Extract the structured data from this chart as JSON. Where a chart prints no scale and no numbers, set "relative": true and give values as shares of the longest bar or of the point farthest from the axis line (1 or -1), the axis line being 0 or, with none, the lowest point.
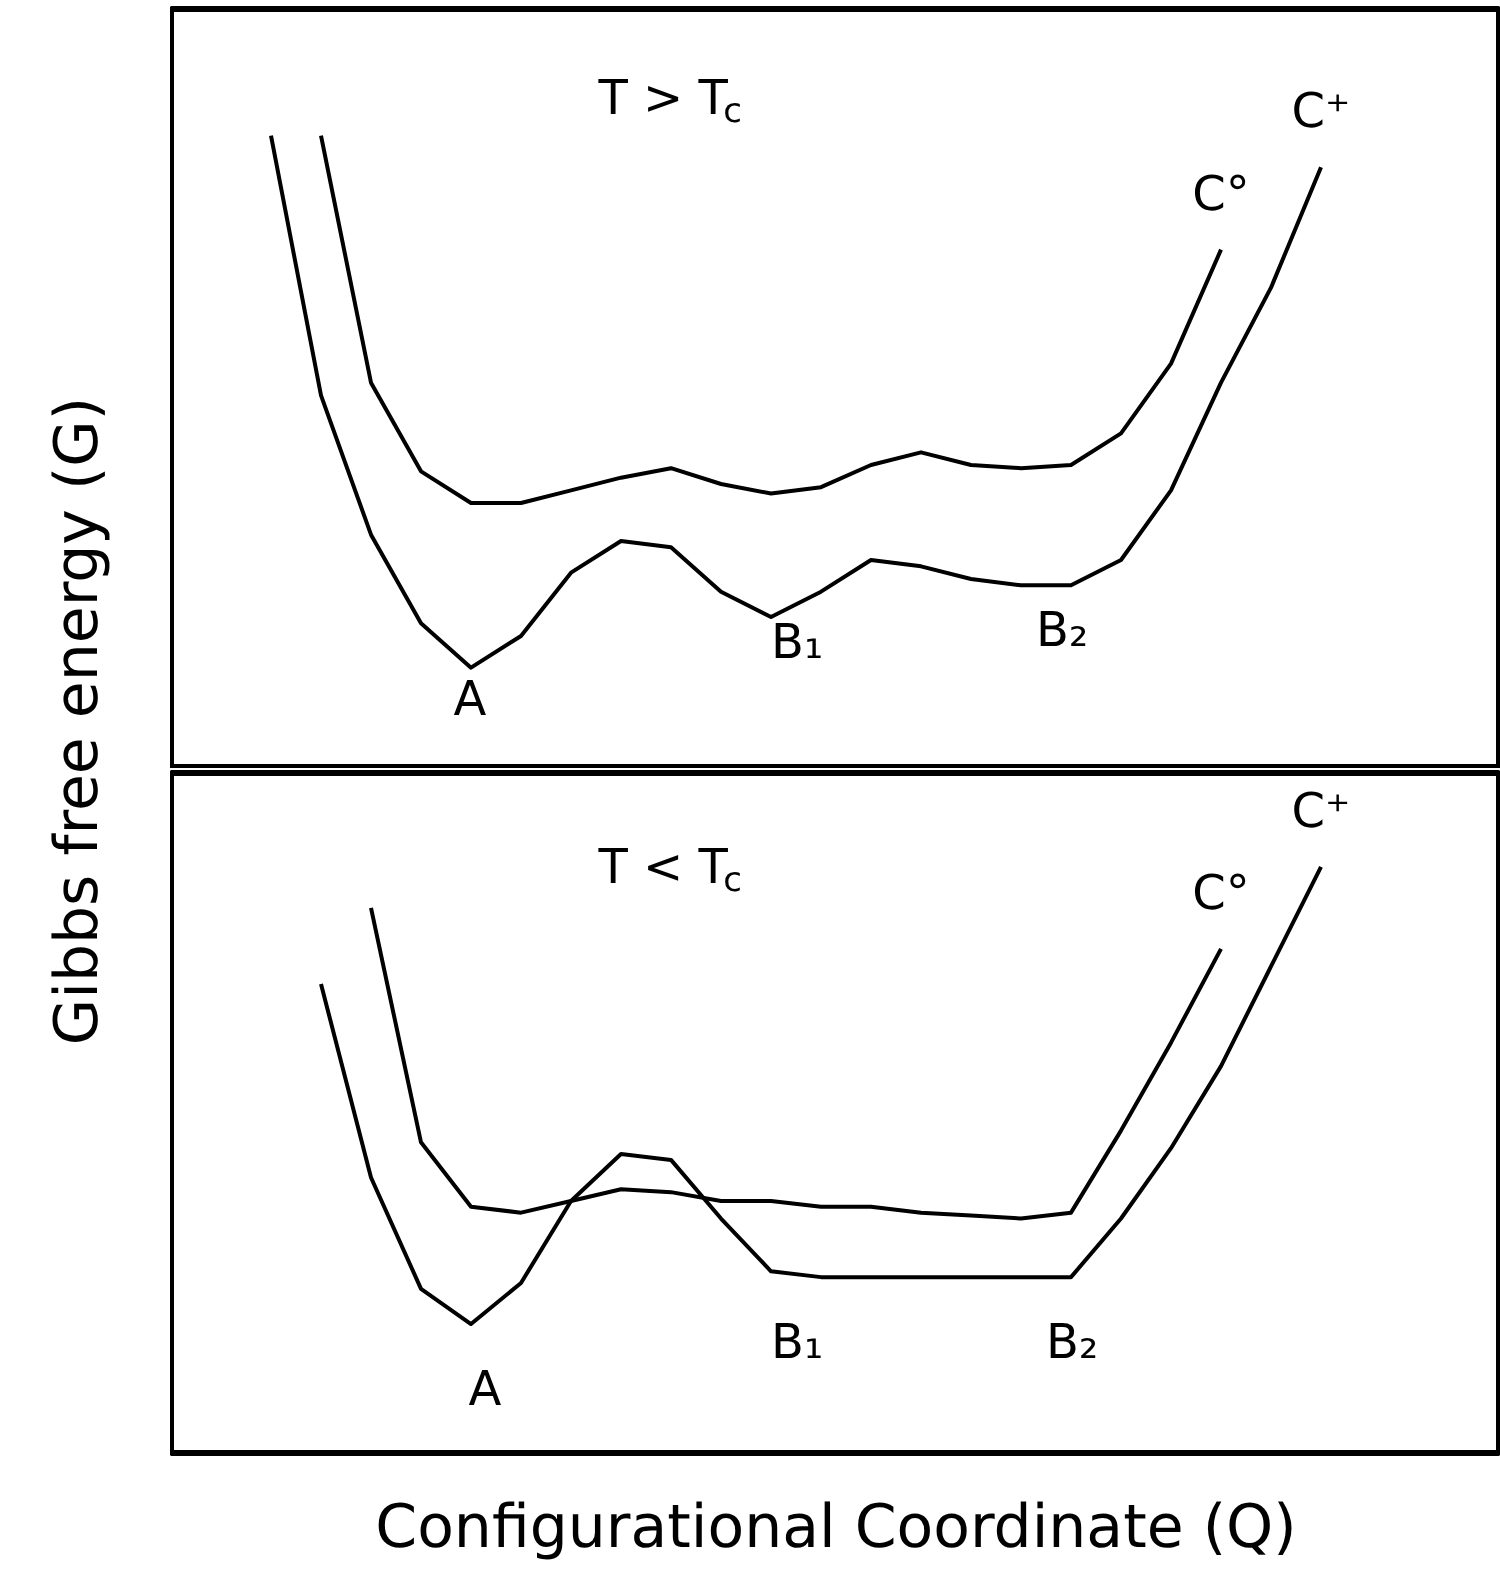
{
  "chart_data": [
    {
      "type": "line",
      "relative": true,
      "ylabel": "Gibbs free energy (G)",
      "annotations": [
        "T > T$_{c}$",
        "A",
        "B₁",
        "B₂"
      ],
      "categories": [
        null,
        null,
        null,
        null,
        null,
        null,
        null,
        null,
        null,
        null,
        null,
        null,
        null,
        null,
        null,
        null,
        null,
        null,
        null,
        null,
        null,
        null
      ],
      "series": [
        {
          "name": "C°",
          "color": "#000000",
          "values": [
            null,
            1.0,
            0.61,
            0.47,
            0.42,
            0.42,
            0.44,
            0.46,
            0.475,
            0.45,
            0.435,
            0.445,
            0.48,
            0.5,
            0.48,
            0.475,
            0.48,
            0.53,
            0.64,
            0.82,
            null,
            null
          ]
        },
        {
          "name": "C⁺",
          "color": "#000000",
          "values": [
            1.0,
            0.59,
            0.37,
            0.23,
            0.16,
            0.21,
            0.31,
            0.36,
            0.35,
            0.28,
            0.24,
            0.28,
            0.33,
            0.32,
            0.3,
            0.29,
            0.29,
            0.33,
            0.44,
            0.61,
            0.76,
            0.95
          ]
        }
      ]
    },
    {
      "type": "line",
      "relative": true,
      "xlabel": "Configurational Coordinate (Q)",
      "annotations": [
        "T < T$_{c}$",
        "A",
        "B₁",
        "B₂"
      ],
      "categories": [
        null,
        null,
        null,
        null,
        null,
        null,
        null,
        null,
        null,
        null,
        null,
        null,
        null,
        null,
        null,
        null,
        null,
        null,
        null,
        null,
        null,
        null
      ],
      "series": [
        {
          "name": "C°",
          "color": "#000000",
          "values": [
            null,
            null,
            0.93,
            0.53,
            0.42,
            0.41,
            0.43,
            0.45,
            0.445,
            0.43,
            0.43,
            0.42,
            0.42,
            0.41,
            0.405,
            0.4,
            0.41,
            0.55,
            0.7,
            0.86,
            null,
            null
          ]
        },
        {
          "name": "C⁺",
          "color": "#000000",
          "values": [
            null,
            0.8,
            0.47,
            0.28,
            0.22,
            0.29,
            0.43,
            0.51,
            0.5,
            0.4,
            0.31,
            0.3,
            0.3,
            0.3,
            0.3,
            0.3,
            0.3,
            0.4,
            0.52,
            0.66,
            0.83,
            1.0
          ]
        }
      ]
    }
  ]
}
